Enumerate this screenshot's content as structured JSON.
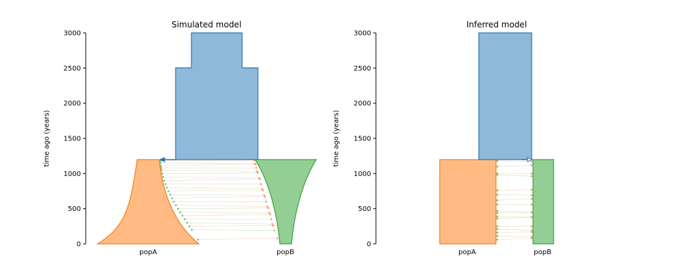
{
  "colors": {
    "ancestral_fill": "#8fb9d9",
    "ancestral_edge": "#2d74b1",
    "popA_fill": "#ffbb83",
    "popA_edge": "#f07f1a",
    "popB_fill": "#93cf94",
    "popB_edge": "#36a03b",
    "migration_orange": "#f4a46a",
    "migration_green": "#7dc47f"
  },
  "chart_data": [
    {
      "type": "demography",
      "title": "Simulated model",
      "xlabel": "",
      "ylabel": "time ago (years)",
      "ylim": [
        0,
        3000
      ],
      "yticks": [
        0,
        500,
        1000,
        1500,
        2000,
        2500,
        3000
      ],
      "grid": false,
      "populations": [
        "popA",
        "popB"
      ],
      "split_time": 1200,
      "ancestral_width_profile": [
        {
          "time_range": [
            1200,
            2500
          ],
          "relative_width": 1.0
        },
        {
          "time_range": [
            2500,
            3000
          ],
          "relative_width": 0.62
        }
      ],
      "popA_growth": "exponential",
      "popB_growth": "exponential",
      "migration_arrow_time": 1200,
      "migration_direction": "popB_to_popA",
      "migration_event_times": [
        1180,
        1150,
        1110,
        1080,
        1050,
        1000,
        950,
        900,
        850,
        800,
        750,
        700,
        650,
        600,
        550,
        500,
        450,
        400,
        350,
        300,
        250,
        200,
        60
      ]
    },
    {
      "type": "demography",
      "title": "Inferred model",
      "xlabel": "",
      "ylabel": "time ago (years)",
      "ylim": [
        0,
        3000
      ],
      "yticks": [
        0,
        500,
        1000,
        1500,
        2000,
        2500,
        3000
      ],
      "grid": false,
      "populations": [
        "popA",
        "popB"
      ],
      "split_time": 1200,
      "popA_growth": "constant",
      "popB_growth": "constant",
      "migration_arrow_time": 1200,
      "migration_direction": "popA_to_popB",
      "migration_event_times": [
        1180,
        1100,
        1000,
        980,
        760,
        700,
        620,
        560,
        470,
        440,
        390,
        360,
        250,
        210,
        160,
        110,
        60
      ]
    }
  ]
}
